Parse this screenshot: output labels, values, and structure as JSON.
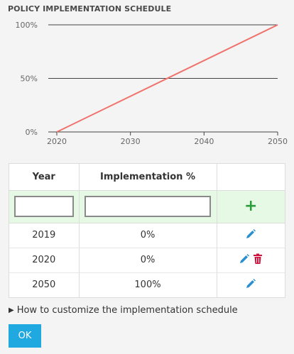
{
  "title": "POLICY IMPLEMENTATION SCHEDULE",
  "chart_data": {
    "type": "line",
    "x": [
      2020,
      2050
    ],
    "values": [
      0,
      100
    ],
    "xticks": [
      "2020",
      "2030",
      "2040",
      "2050"
    ],
    "yticks": [
      "0%",
      "50%",
      "100%"
    ],
    "xlim": [
      2020,
      2050
    ],
    "ylim": [
      0,
      100
    ],
    "line_color": "#f0726c",
    "grid": "horizontal"
  },
  "table": {
    "headers": {
      "year": "Year",
      "pct": "Implementation %"
    },
    "new_row": {
      "year_value": "",
      "pct_value": "",
      "add_label": "+"
    },
    "rows": [
      {
        "year": "2019",
        "pct": "0%",
        "edit": true,
        "delete": false
      },
      {
        "year": "2020",
        "pct": "0%",
        "edit": true,
        "delete": true
      },
      {
        "year": "2050",
        "pct": "100%",
        "edit": true,
        "delete": false
      }
    ]
  },
  "details_label": "How to customize the implementation schedule",
  "ok_label": "OK",
  "colors": {
    "accent": "#20a8e0",
    "add": "#2a9d3a",
    "delete": "#d0103a",
    "edit": "#2a8fcf"
  }
}
